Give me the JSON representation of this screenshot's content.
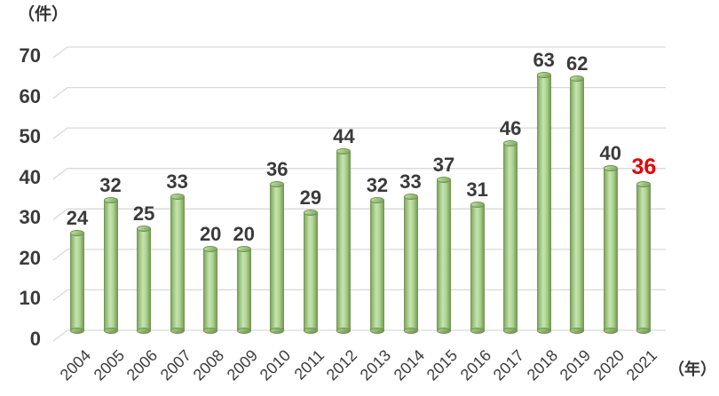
{
  "chart_data": {
    "type": "bar",
    "style": "3d-cylinder",
    "title": "",
    "y_unit": "（件）",
    "x_unit": "（年）",
    "categories": [
      "2004",
      "2005",
      "2006",
      "2007",
      "2008",
      "2009",
      "2010",
      "2011",
      "2012",
      "2013",
      "2014",
      "2015",
      "2016",
      "2017",
      "2018",
      "2019",
      "2020",
      "2021"
    ],
    "values": [
      24,
      32,
      25,
      33,
      20,
      20,
      36,
      29,
      44,
      32,
      33,
      37,
      31,
      46,
      63,
      62,
      40,
      36
    ],
    "ylim": [
      0,
      70
    ],
    "y_ticks": [
      0,
      10,
      20,
      30,
      40,
      50,
      60,
      70
    ],
    "grid": true,
    "legend": "none",
    "bar_color": "#A9D18E",
    "bar_edge_color": "#6E9150",
    "gridline_color": "#D9D9D9",
    "label_color": "#3A3A3A",
    "highlight": {
      "index": 17,
      "category": "2021",
      "value": 36,
      "color": "#E60000"
    }
  }
}
